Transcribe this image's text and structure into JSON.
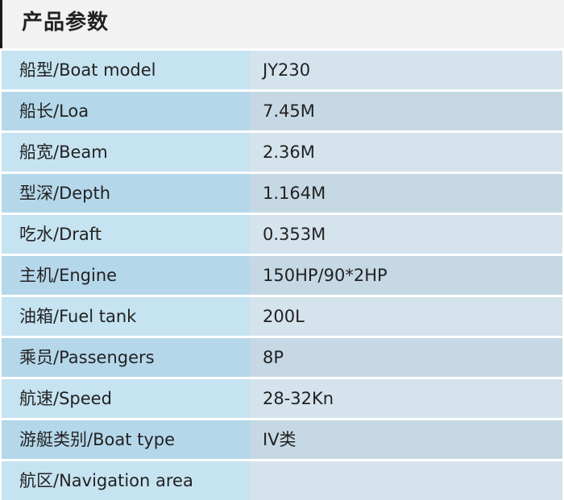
{
  "header": {
    "title": "产品参数"
  },
  "specs": [
    {
      "label": "船型/Boat model",
      "value": "JY230"
    },
    {
      "label": "船长/Loa",
      "value": "7.45M"
    },
    {
      "label": "船宽/Beam",
      "value": "2.36M"
    },
    {
      "label": "型深/Depth",
      "value": "1.164M"
    },
    {
      "label": "吃水/Draft",
      "value": "0.353M"
    },
    {
      "label": "主机/Engine",
      "value": "150HP/90*2HP"
    },
    {
      "label": "油箱/Fuel tank",
      "value": "200L"
    },
    {
      "label": "乘员/Passengers",
      "value": "8P"
    },
    {
      "label": "航速/Speed",
      "value": "28-32Kn"
    },
    {
      "label": "游艇类别/Boat type",
      "value": "IV类"
    },
    {
      "label": "航区/Navigation area",
      "value": ""
    }
  ]
}
